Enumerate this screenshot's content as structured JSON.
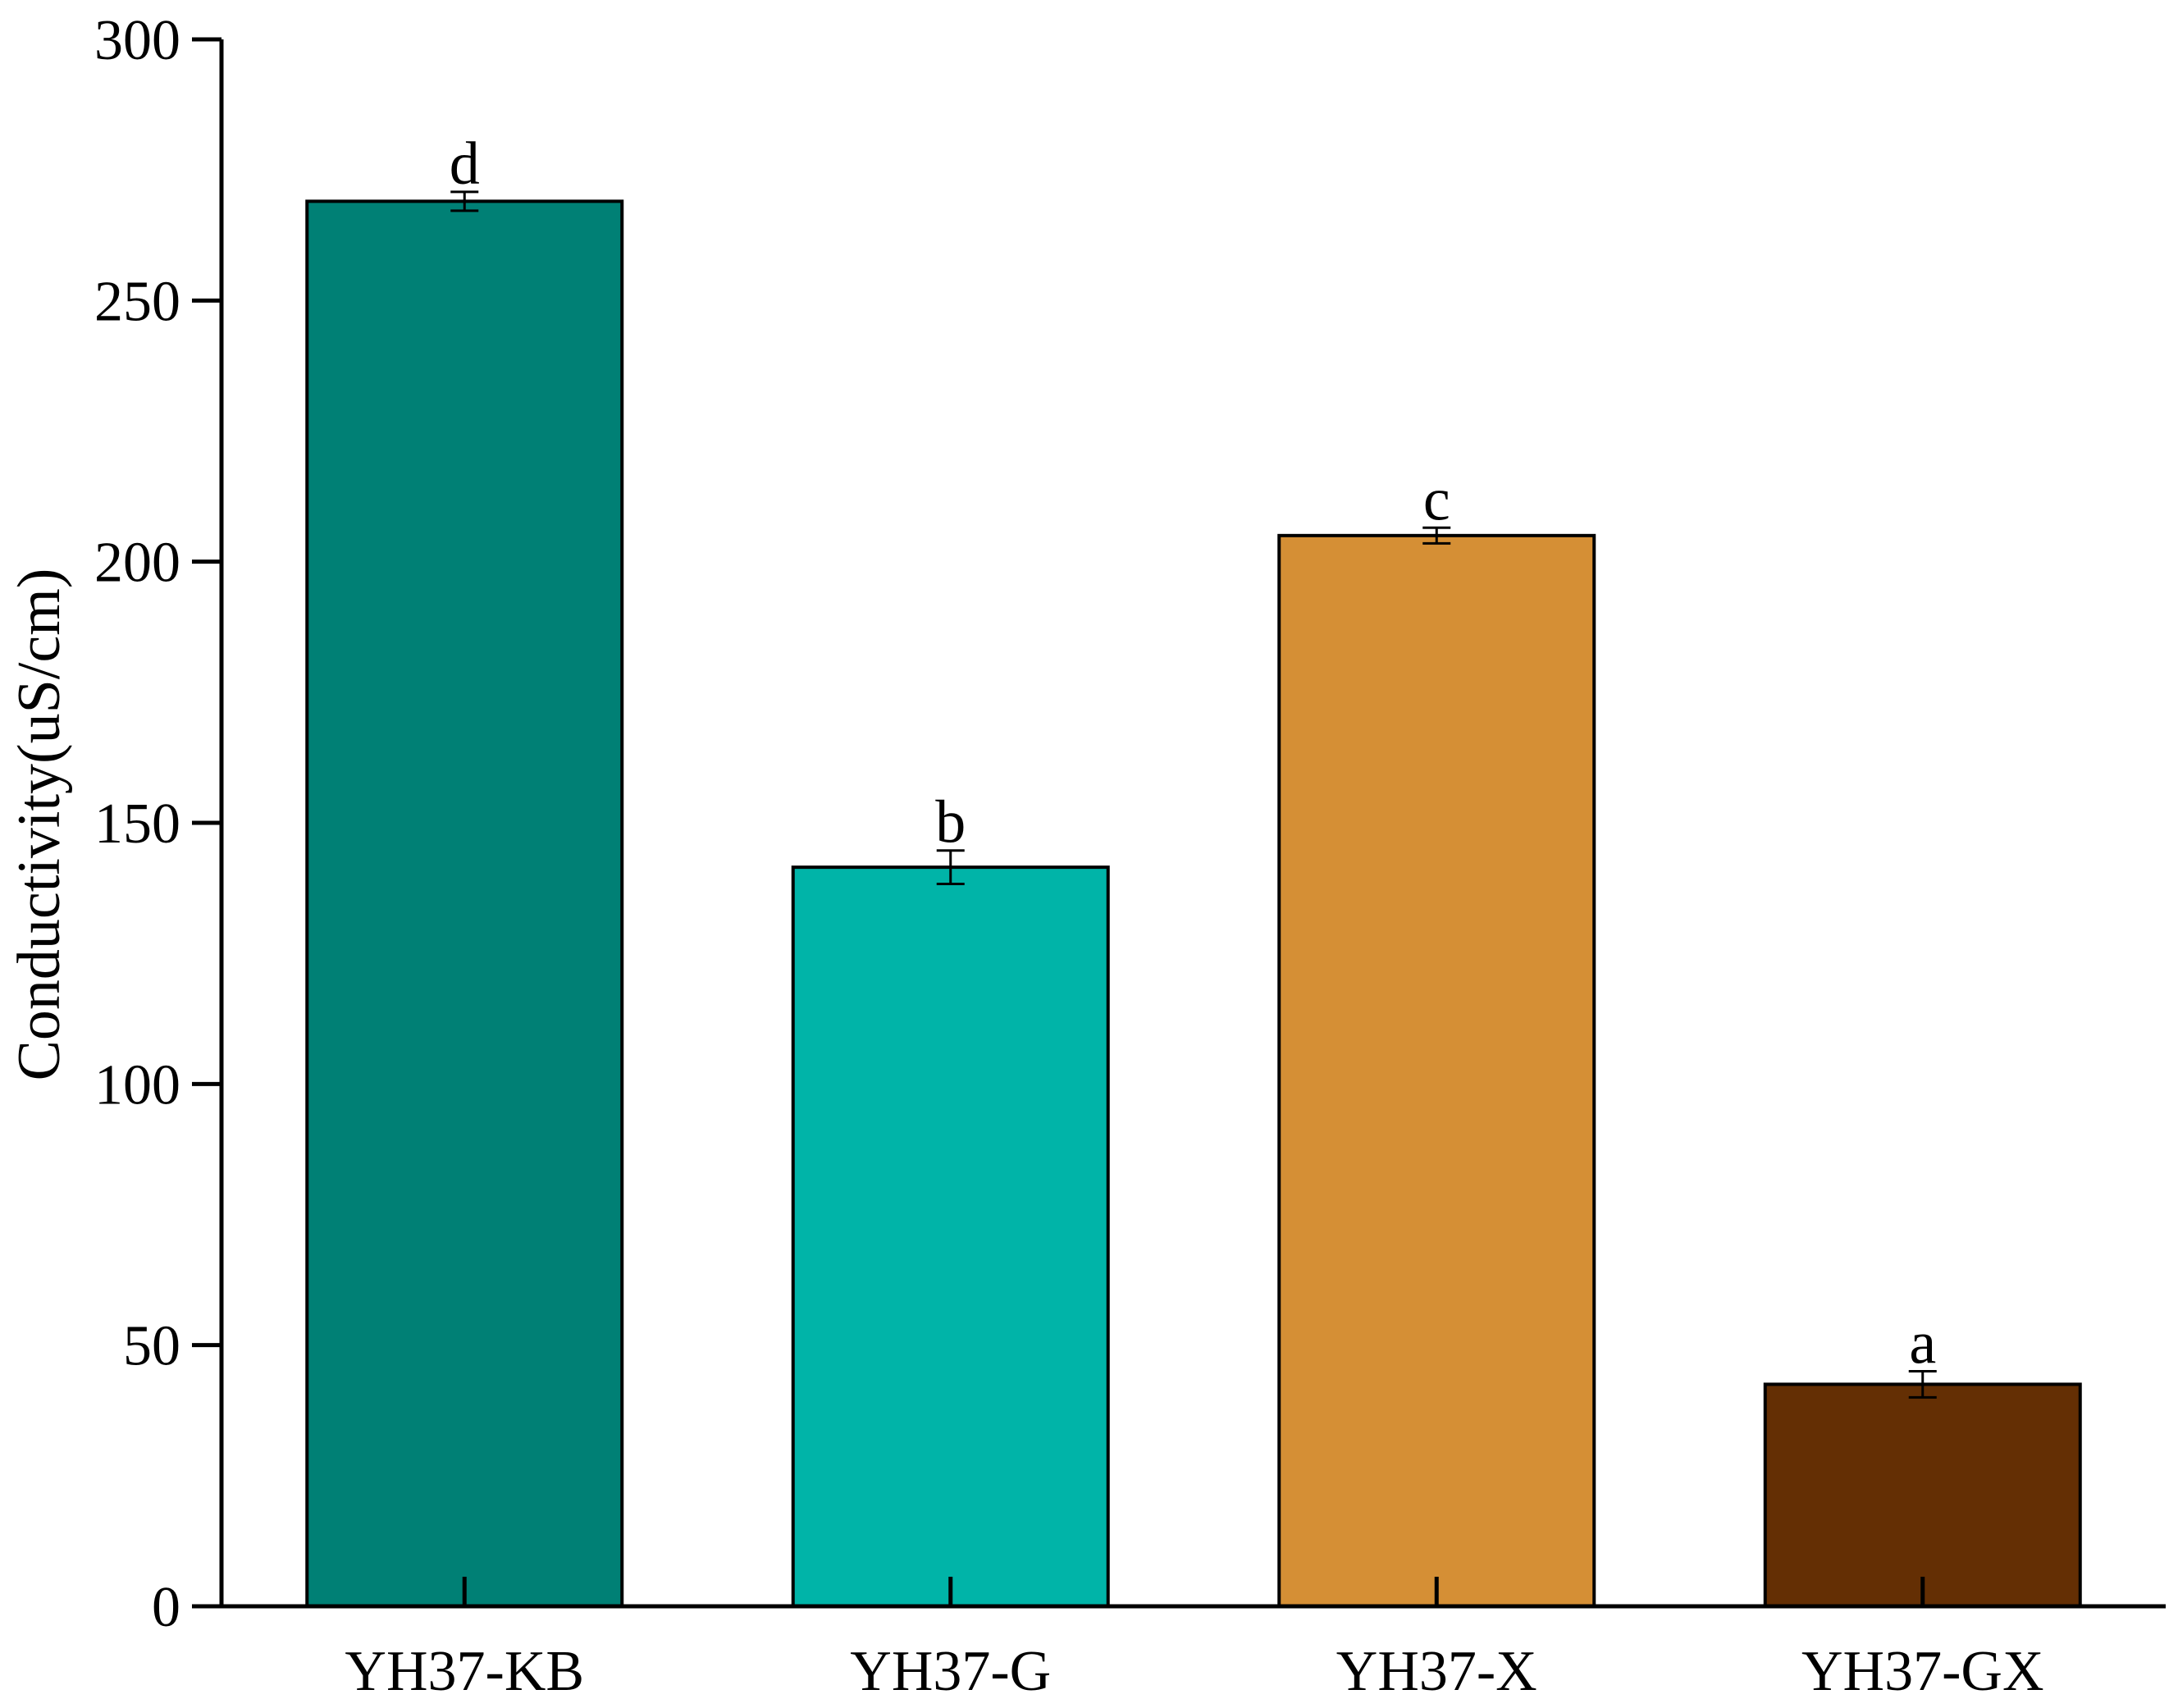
{
  "chart_data": {
    "type": "bar",
    "title": "",
    "xlabel": "",
    "ylabel": "Conductivity(uS/cm)",
    "ylim": [
      0,
      300
    ],
    "yticks": [
      0,
      50,
      100,
      150,
      200,
      250,
      300
    ],
    "grid": false,
    "legend": "none",
    "categories": [
      "YH37-KB",
      "YH37-G",
      "YH37-X",
      "YH37-GX"
    ],
    "values": [
      269,
      141.5,
      205,
      42.5
    ],
    "errors": [
      1.8,
      3.2,
      1.5,
      2.5
    ],
    "significance_labels": [
      "d",
      "b",
      "c",
      "a"
    ],
    "colors": [
      "#008075",
      "#00B4A8",
      "#D58F35",
      "#642F04"
    ]
  }
}
